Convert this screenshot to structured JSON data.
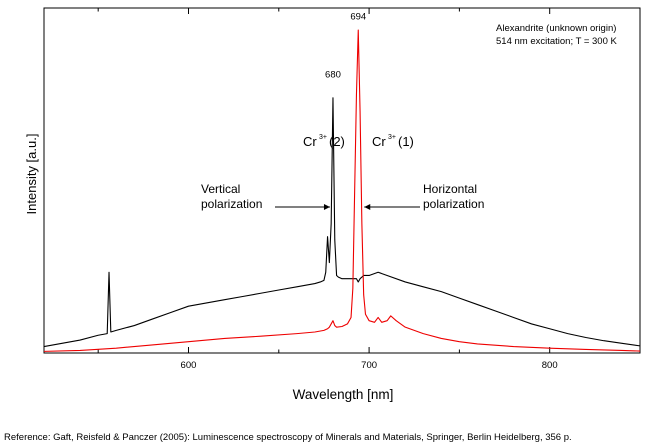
{
  "chart_data": {
    "type": "line",
    "title": "",
    "xlabel": "Wavelength [nm]",
    "ylabel": "Intensity [a.u.]",
    "xlim": [
      520,
      850
    ],
    "ylim": [
      0,
      100
    ],
    "y_ticks_shown": false,
    "x_ticks_major": [
      600,
      700,
      800
    ],
    "x_tick_labels": [
      "600",
      "700",
      "800"
    ],
    "grid": false,
    "info_lines": [
      "Alexandrite (unknown origin)",
      "514 nm excitation; T = 300 K"
    ],
    "peak_labels": [
      {
        "text": "680",
        "x": 680,
        "y": 84
      },
      {
        "text": "694",
        "x": 694,
        "y": 102
      }
    ],
    "line_labels": [
      {
        "ion": "Cr",
        "charge": "3+",
        "site": "(2)",
        "x": 680
      },
      {
        "ion": "Cr",
        "charge": "3+",
        "site": "(1)",
        "x": 694
      }
    ],
    "annotations": [
      {
        "lines": [
          "Vertical",
          "polarization"
        ],
        "arrow_to": 680
      },
      {
        "lines": [
          "Horizontal",
          "polarization"
        ],
        "arrow_to": 694
      }
    ],
    "series": [
      {
        "name": "Vertical polarization",
        "color": "#000000",
        "x": [
          520,
          530,
          540,
          550,
          555,
          556,
          557,
          560,
          570,
          580,
          590,
          600,
          610,
          620,
          630,
          640,
          650,
          660,
          665,
          670,
          673,
          675,
          676,
          677,
          678,
          679,
          680,
          681,
          682,
          683,
          685,
          688,
          690,
          693,
          694,
          695,
          697,
          700,
          705,
          710,
          720,
          730,
          740,
          750,
          760,
          770,
          780,
          790,
          800,
          810,
          820,
          830,
          840,
          850
        ],
        "values": [
          2,
          3,
          4,
          5.5,
          6,
          25,
          6.5,
          7,
          8.5,
          10.5,
          12.5,
          14.5,
          15.5,
          16.5,
          17.5,
          18.5,
          19.5,
          20.5,
          21,
          21.5,
          22,
          22.5,
          25,
          36,
          28,
          40,
          79,
          35,
          24,
          23.5,
          23,
          23,
          23,
          23,
          22,
          23,
          24,
          24,
          25,
          24,
          22,
          20.5,
          19,
          17,
          15,
          13,
          11,
          9,
          7.5,
          6,
          4.8,
          3.8,
          3,
          2.2
        ]
      },
      {
        "name": "Horizontal polarization",
        "color": "#ee0000",
        "x": [
          520,
          540,
          560,
          580,
          600,
          620,
          640,
          660,
          670,
          675,
          677,
          678,
          679,
          680,
          681,
          682,
          685,
          688,
          690,
          691,
          692,
          693,
          694,
          695,
          696,
          697,
          698,
          700,
          703,
          705,
          707,
          710,
          712,
          715,
          720,
          730,
          740,
          750,
          760,
          780,
          800,
          820,
          840,
          850
        ],
        "values": [
          0.5,
          0.8,
          1.5,
          2.5,
          3.5,
          4.5,
          5.2,
          6,
          6.5,
          7,
          7.5,
          8,
          9,
          10,
          8.5,
          8,
          8.2,
          9,
          11,
          20,
          50,
          80,
          100,
          75,
          40,
          18,
          12,
          10,
          9.5,
          11,
          9.5,
          10,
          11.5,
          10,
          8,
          6,
          4.5,
          3.5,
          2.8,
          2,
          1.5,
          1.1,
          0.8,
          0.6
        ]
      }
    ]
  },
  "reference": "Reference: Gaft, Reisfeld & Panczer (2005): Luminescence spectroscopy of Minerals and Materials, Springer, Berlin Heidelberg, 356 p."
}
